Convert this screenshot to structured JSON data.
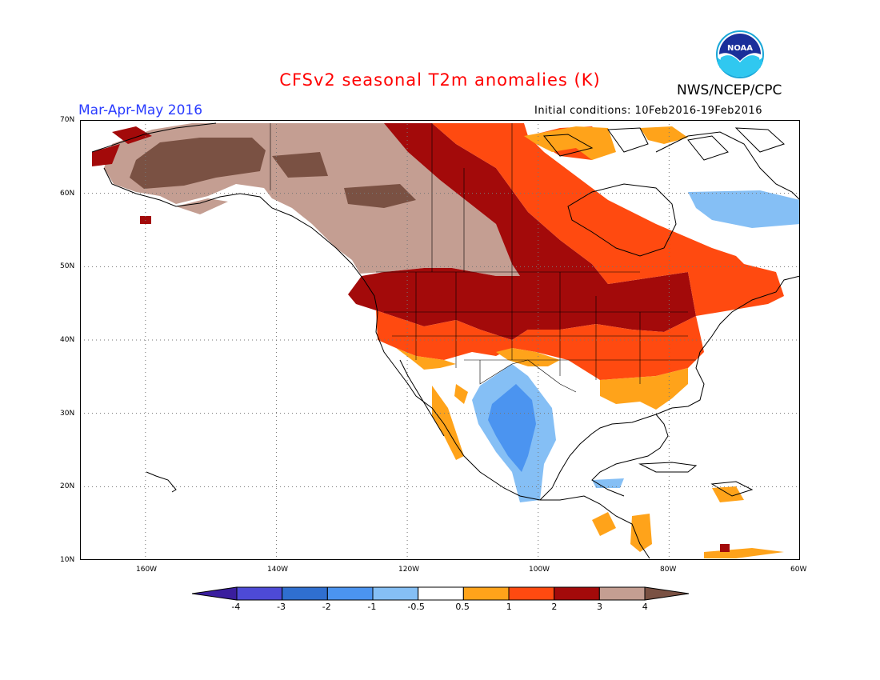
{
  "header": {
    "title": "CFSv2 seasonal T2m anomalies (K)",
    "agency": "NWS/NCEP/CPC",
    "logo_text": "NOAA",
    "period": "Mar-Apr-May 2016",
    "initial_conditions": "Initial conditions: 10Feb2016-19Feb2016"
  },
  "axes": {
    "lat_labels": [
      "70N",
      "60N",
      "50N",
      "40N",
      "30N",
      "20N",
      "10N"
    ],
    "lon_labels": [
      "160W",
      "140W",
      "120W",
      "100W",
      "80W",
      "60W"
    ],
    "lat_range": [
      10,
      70
    ],
    "lon_range": [
      -170,
      -60
    ],
    "grid": "dotted"
  },
  "colorbar": {
    "labels": [
      "-4",
      "-3",
      "-2",
      "-1",
      "-0.5",
      "0.5",
      "1",
      "2",
      "3",
      "4"
    ],
    "colors": [
      "#3a1e9e",
      "#4d4ad6",
      "#2f6fd0",
      "#4b94f0",
      "#85bff5",
      "#ffffff",
      "#ffa31a",
      "#ff4a10",
      "#a30a0a",
      "#c49e92",
      "#7a5143"
    ],
    "bounds": [
      -4,
      -3,
      -2,
      -1,
      -0.5,
      0.5,
      1,
      2,
      3,
      4
    ]
  },
  "map_regions": [
    {
      "name": "Alaska interior",
      "anomaly": "3 to 4+",
      "color": "#c49e92"
    },
    {
      "name": "Alaska core",
      "anomaly": ">4",
      "color": "#7a5143"
    },
    {
      "name": "Western Canada",
      "anomaly": "3 to 4",
      "color": "#c49e92"
    },
    {
      "name": "Central Canada / Northern US",
      "anomaly": "2 to 3",
      "color": "#a30a0a"
    },
    {
      "name": "Eastern Canada / Central US",
      "anomaly": "1 to 2",
      "color": "#ff4a10"
    },
    {
      "name": "Southeast US / Baja",
      "anomaly": "0.5 to 1",
      "color": "#ffa31a"
    },
    {
      "name": "Mexico / Southwest US",
      "anomaly": "-1 to -0.5 / -2 to -1",
      "color": "#85bff5"
    },
    {
      "name": "Hudson Bay / Labrador",
      "anomaly": "-1 to -0.5",
      "color": "#85bff5"
    }
  ]
}
